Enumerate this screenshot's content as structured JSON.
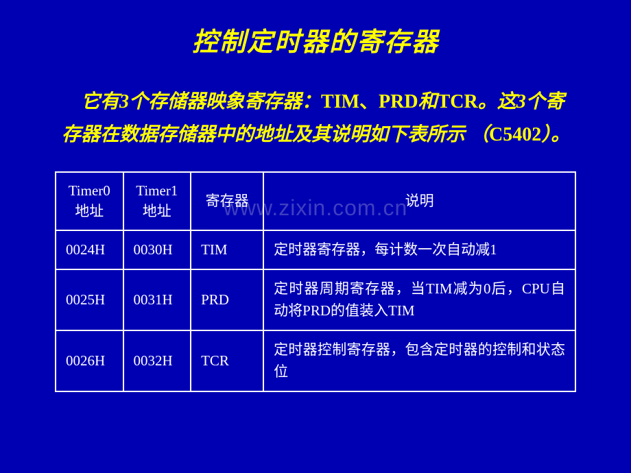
{
  "slide": {
    "background_color": "#0000b3",
    "text_color": "#ffff00",
    "table_border_color": "#ffffff",
    "table_text_color": "#ffffff",
    "title": "控制定时器的寄存器",
    "title_fontsize": 38,
    "description_part1": "它有3个存储器映象寄存器：",
    "description_roman1": "TIM、PRD",
    "description_part2": "和",
    "description_roman2": "TCR",
    "description_part3": "。这3个寄存器在数据存储器中的地址及其说明如下表所示 （",
    "description_roman3": "C5402",
    "description_part4": "）。",
    "description_fontsize": 28,
    "watermark": "www.zixin.com.cn",
    "table": {
      "columns": [
        {
          "label_line1": "Timer0",
          "label_line2": "地址"
        },
        {
          "label_line1": "Timer1",
          "label_line2": "地址"
        },
        {
          "label_line1": "寄存器",
          "label_line2": ""
        },
        {
          "label_line1": "说明",
          "label_line2": ""
        }
      ],
      "rows": [
        {
          "timer0": "0024H",
          "timer1": "0030H",
          "reg": "TIM",
          "desc": "定时器寄存器，每计数一次自动减1"
        },
        {
          "timer0": "0025H",
          "timer1": "0031H",
          "reg": "PRD",
          "desc": "定时器周期寄存器，当TIM减为0后，CPU自动将PRD的值装入TIM"
        },
        {
          "timer0": "0026H",
          "timer1": "0032H",
          "reg": "TCR",
          "desc": "定时器控制寄存器，包含定时器的控制和状态位"
        }
      ]
    }
  }
}
